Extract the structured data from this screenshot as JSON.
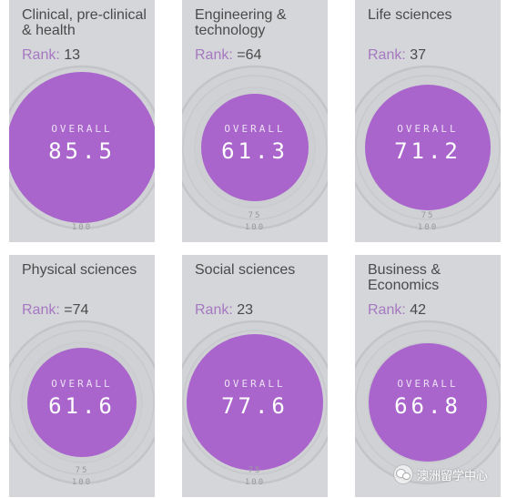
{
  "rank_label": "Rank:",
  "overall_label": "OVERALL",
  "ticks": {
    "t75": "75",
    "t100": "100"
  },
  "colors": {
    "card_bg": "#d4d6d9",
    "score_disc": "#a965cc",
    "rank_label": "#a678c2",
    "text": "#4a4a4a"
  },
  "cards": [
    {
      "title": "Clinical, pre-clinical & health",
      "rank": "13",
      "score": "85.5",
      "score_value": 85.5
    },
    {
      "title": "Engineering & technology",
      "rank": "=64",
      "score": "61.3",
      "score_value": 61.3
    },
    {
      "title": "Life sciences",
      "rank": "37",
      "score": "71.2",
      "score_value": 71.2
    },
    {
      "title": "Physical sciences",
      "rank": "=74",
      "score": "61.6",
      "score_value": 61.6
    },
    {
      "title": "Social sciences",
      "rank": "23",
      "score": "77.6",
      "score_value": 77.6
    },
    {
      "title": "Business & Economics",
      "rank": "42",
      "score": "66.8",
      "score_value": 66.8
    }
  ],
  "watermark": {
    "icon": "wechat-icon",
    "text": "澳洲留学中心"
  }
}
